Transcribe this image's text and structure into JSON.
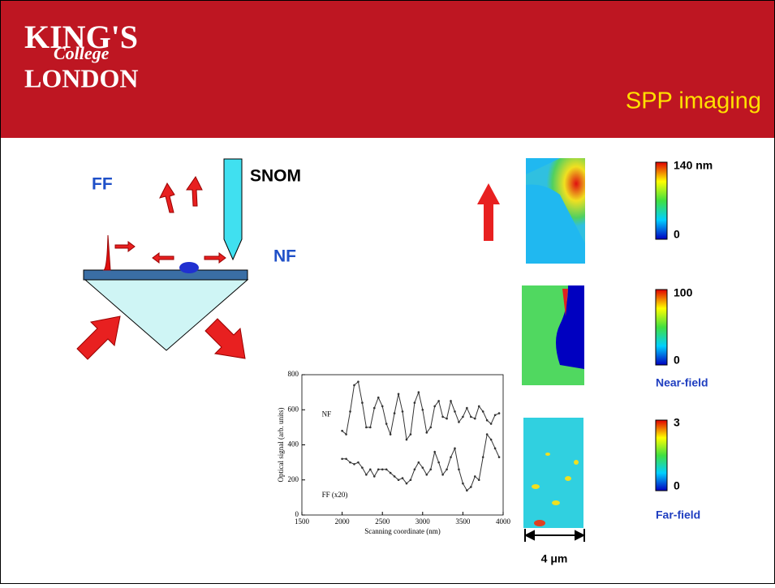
{
  "header": {
    "logo": {
      "line1": "KING'S",
      "line2": "College",
      "line3": "LONDON"
    },
    "title": "SPP imaging"
  },
  "diagram": {
    "ff_label": "FF",
    "snom_label": "SNOM",
    "nf_label": "NF"
  },
  "chart_data": {
    "type": "line",
    "x_label": "Scanning coordinate (nm)",
    "y_label": "Optical signal (arb. units)",
    "x": [
      2000,
      2050,
      2100,
      2150,
      2200,
      2250,
      2300,
      2350,
      2400,
      2450,
      2500,
      2550,
      2600,
      2650,
      2700,
      2750,
      2800,
      2850,
      2900,
      2950,
      3000,
      3050,
      3100,
      3150,
      3200,
      3250,
      3300,
      3350,
      3400,
      3450,
      3500,
      3550,
      3600,
      3650,
      3700,
      3750,
      3800,
      3850,
      3900,
      3950
    ],
    "series": [
      {
        "name": "NF",
        "color": "#333333",
        "values": [
          480,
          460,
          590,
          740,
          760,
          640,
          500,
          500,
          610,
          670,
          620,
          520,
          460,
          580,
          690,
          590,
          430,
          460,
          640,
          700,
          600,
          470,
          500,
          620,
          650,
          560,
          550,
          650,
          590,
          530,
          560,
          610,
          560,
          550,
          620,
          590,
          540,
          520,
          570,
          580
        ]
      },
      {
        "name": "FF (x20)",
        "color": "#333333",
        "values": [
          320,
          320,
          300,
          290,
          300,
          270,
          230,
          260,
          220,
          260,
          260,
          260,
          240,
          220,
          200,
          210,
          180,
          200,
          260,
          300,
          270,
          230,
          260,
          360,
          300,
          230,
          260,
          330,
          380,
          260,
          180,
          140,
          160,
          220,
          200,
          330,
          460,
          430,
          380,
          330
        ]
      }
    ],
    "xlim": [
      1500,
      4000
    ],
    "xticks": [
      1500,
      2000,
      2500,
      3000,
      3500,
      4000
    ],
    "ylim": [
      0,
      800
    ],
    "yticks": [
      0,
      200,
      400,
      600,
      800
    ]
  },
  "images": {
    "topo": {
      "max": "140 nm",
      "min": "0"
    },
    "near": {
      "max": "100",
      "min": "0",
      "caption": "Near-field"
    },
    "far": {
      "max": "3",
      "min": "0",
      "caption": "Far-field"
    },
    "scale": "4 μm"
  }
}
